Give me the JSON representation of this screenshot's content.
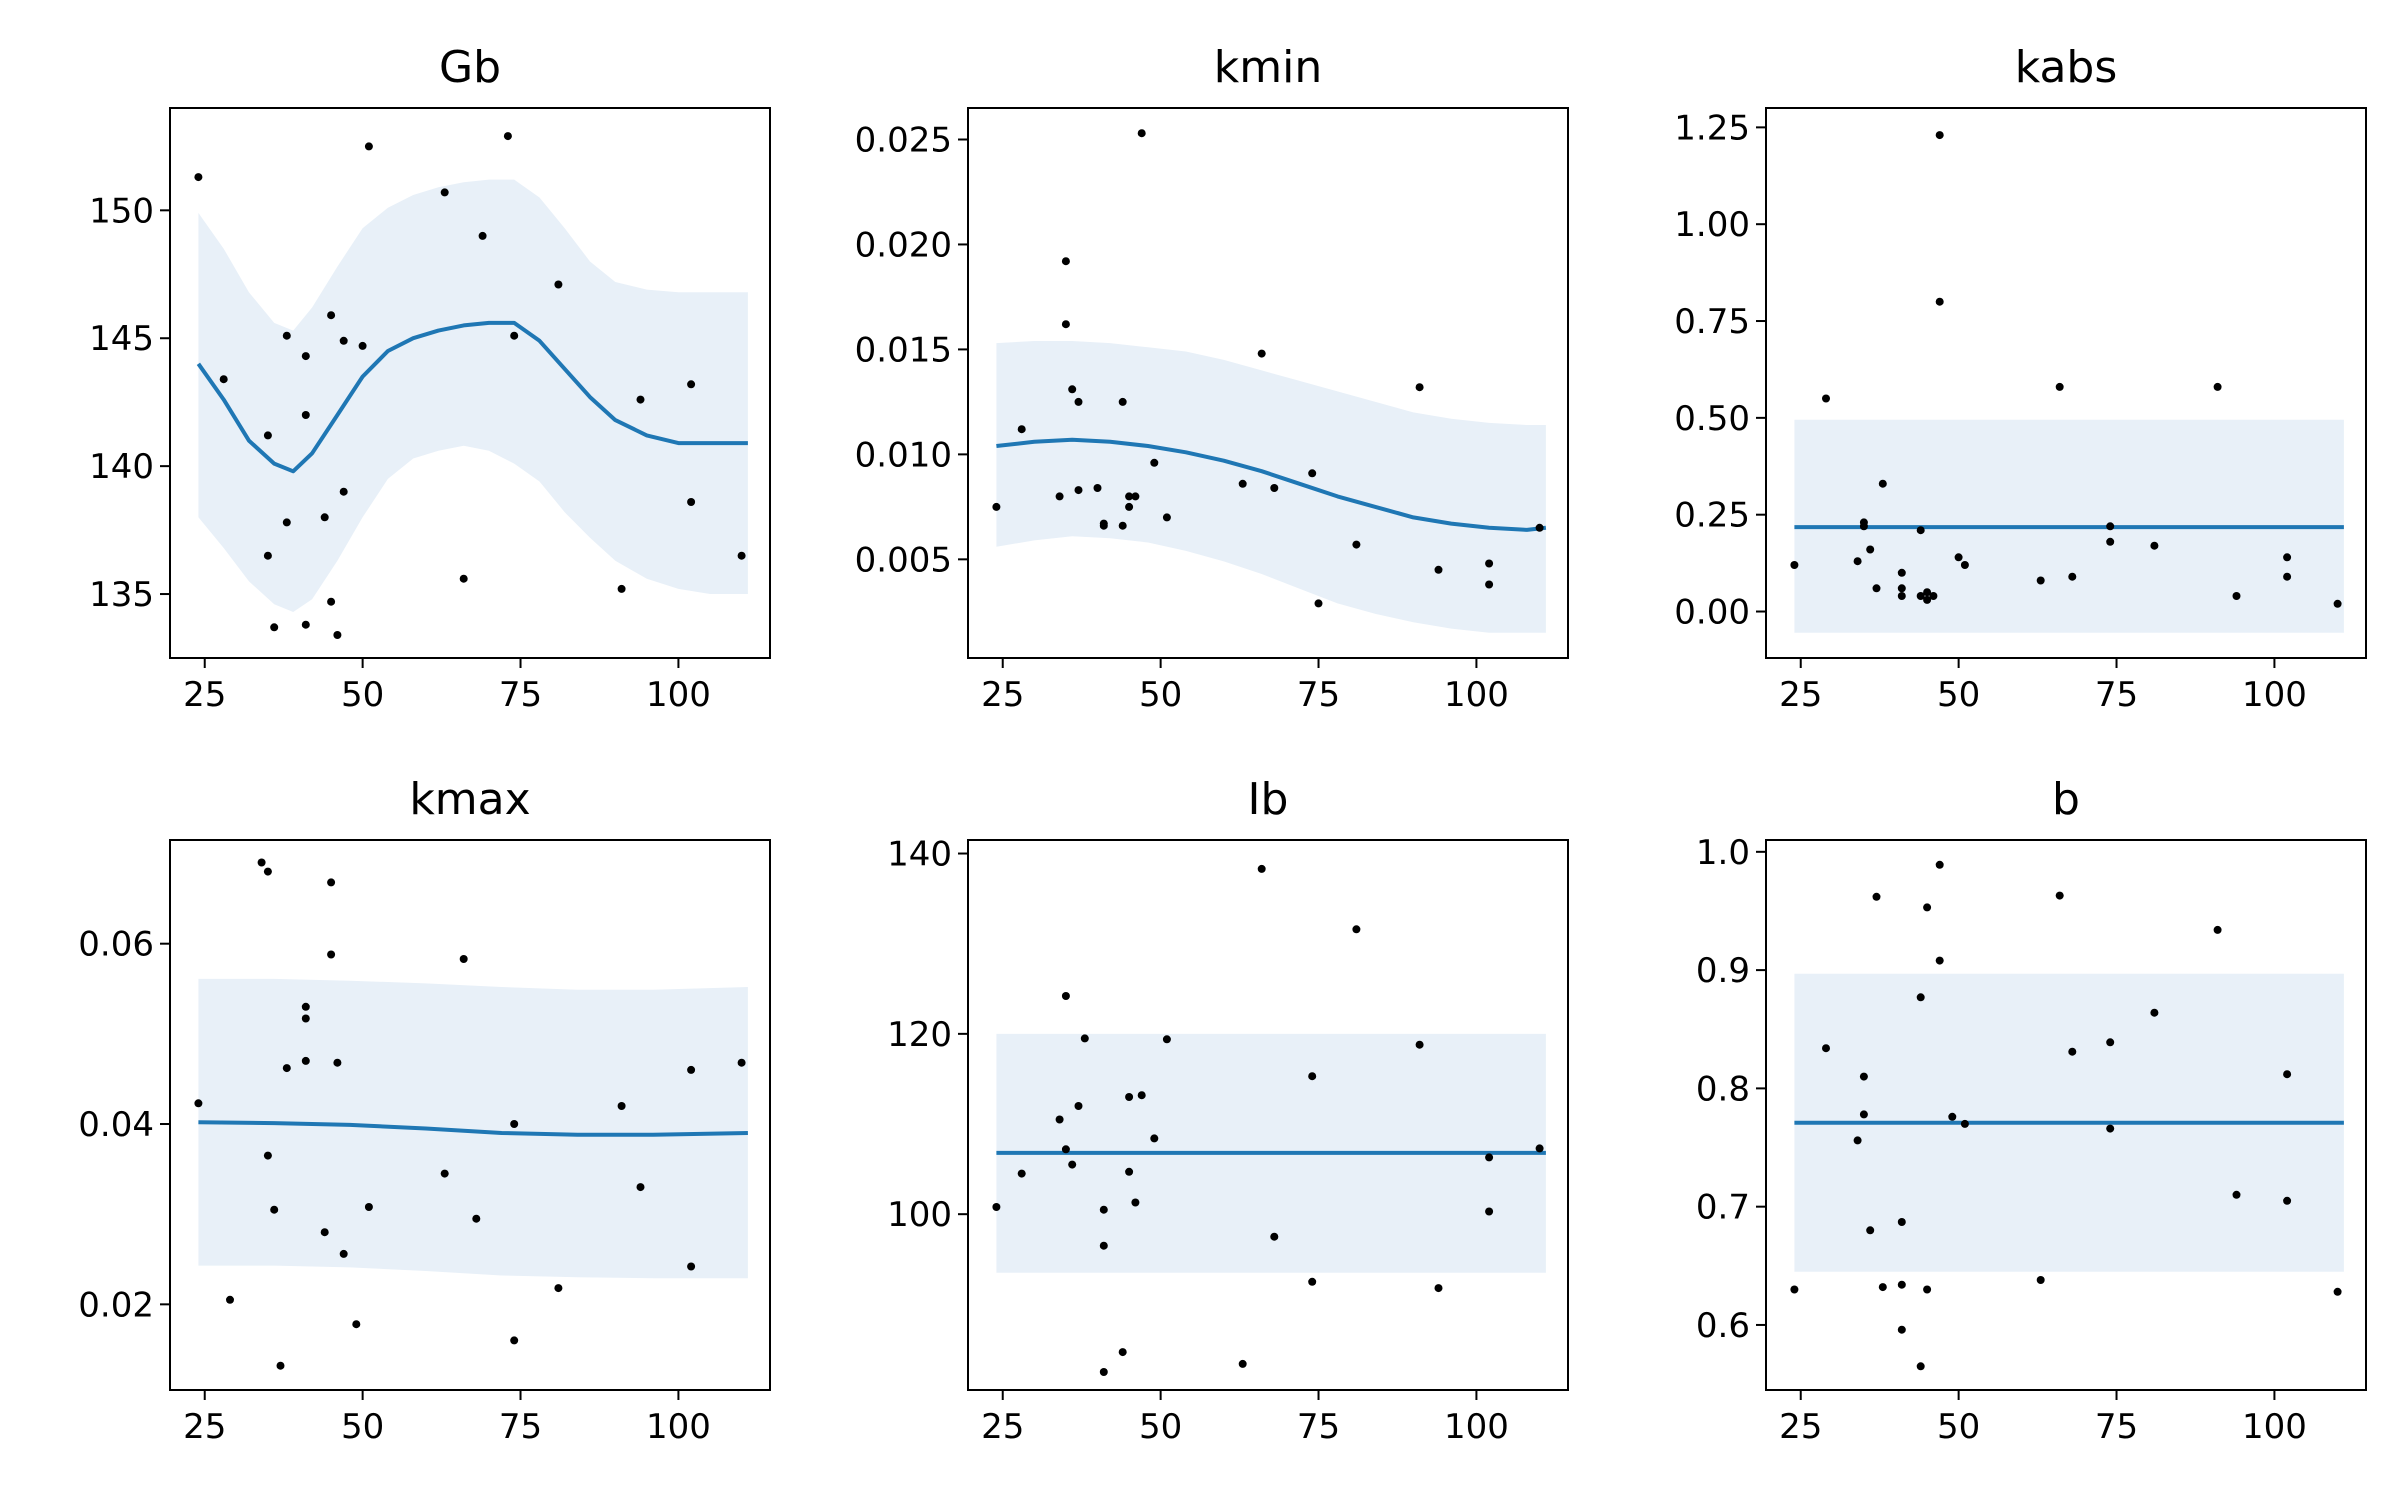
{
  "figure": {
    "background": "#ffffff"
  },
  "style": {
    "line_color": "#1f77b4",
    "band_color": "#e8f0f8",
    "point_color": "#000000"
  },
  "chart_data": [
    {
      "type": "line",
      "title": "Gb",
      "xlabel": "",
      "ylabel": "",
      "xlim": [
        19.5,
        114.5
      ],
      "ylim": [
        132.5,
        154
      ],
      "xticks": [
        25,
        50,
        75,
        100
      ],
      "xticklabels": [
        "25",
        "50",
        "75",
        "100"
      ],
      "yticks": [
        135,
        140,
        145,
        150
      ],
      "yticklabels": [
        "135",
        "140",
        "145",
        "150"
      ],
      "grid": false,
      "fit": {
        "x": [
          24,
          28,
          32,
          36,
          39,
          42,
          46,
          50,
          54,
          58,
          62,
          66,
          70,
          74,
          78,
          82,
          86,
          90,
          95,
          100,
          105,
          111
        ],
        "y": [
          144.0,
          142.6,
          141.0,
          140.1,
          139.8,
          140.5,
          142.0,
          143.5,
          144.5,
          145.0,
          145.3,
          145.5,
          145.6,
          145.6,
          144.9,
          143.8,
          142.7,
          141.8,
          141.2,
          140.9,
          140.9,
          140.9
        ]
      },
      "band": {
        "x": [
          24,
          28,
          32,
          36,
          39,
          42,
          46,
          50,
          54,
          58,
          62,
          66,
          70,
          74,
          78,
          82,
          86,
          90,
          95,
          100,
          105,
          111
        ],
        "lower": [
          138.0,
          136.8,
          135.5,
          134.6,
          134.3,
          134.8,
          136.3,
          138.0,
          139.5,
          140.3,
          140.6,
          140.8,
          140.6,
          140.1,
          139.4,
          138.2,
          137.2,
          136.3,
          135.6,
          135.2,
          135.0,
          135.0
        ],
        "upper": [
          149.9,
          148.5,
          146.8,
          145.6,
          145.3,
          146.2,
          147.8,
          149.3,
          150.1,
          150.6,
          150.9,
          151.1,
          151.2,
          151.2,
          150.5,
          149.3,
          148.0,
          147.2,
          146.9,
          146.8,
          146.8,
          146.8
        ]
      },
      "points": {
        "x": [
          24,
          28,
          35,
          35,
          36,
          38,
          38,
          41,
          41,
          41,
          44,
          45,
          45,
          46,
          47,
          47,
          50,
          51,
          63,
          66,
          69,
          73,
          74,
          81,
          91,
          94,
          102,
          102,
          110
        ],
        "y": [
          151.3,
          143.4,
          141.2,
          136.5,
          133.7,
          145.1,
          137.8,
          144.3,
          142.0,
          133.8,
          138.0,
          145.9,
          134.7,
          133.4,
          144.9,
          139.0,
          144.7,
          152.5,
          150.7,
          135.6,
          149.0,
          152.9,
          145.1,
          147.1,
          135.2,
          142.6,
          143.2,
          138.6,
          136.5
        ]
      }
    },
    {
      "type": "line",
      "title": "kmin",
      "xlabel": "",
      "ylabel": "",
      "xlim": [
        19.5,
        114.5
      ],
      "ylim": [
        0.0003,
        0.0265
      ],
      "xticks": [
        25,
        50,
        75,
        100
      ],
      "xticklabels": [
        "25",
        "50",
        "75",
        "100"
      ],
      "yticks": [
        0.005,
        0.01,
        0.015,
        0.02,
        0.025
      ],
      "yticklabels": [
        "0.005",
        "0.010",
        "0.015",
        "0.020",
        "0.025"
      ],
      "grid": false,
      "fit": {
        "x": [
          24,
          30,
          36,
          42,
          48,
          54,
          60,
          66,
          72,
          78,
          84,
          90,
          96,
          102,
          108,
          111
        ],
        "y": [
          0.0104,
          0.0106,
          0.0107,
          0.0106,
          0.0104,
          0.0101,
          0.0097,
          0.0092,
          0.0086,
          0.008,
          0.0075,
          0.007,
          0.0067,
          0.0065,
          0.0064,
          0.0065
        ]
      },
      "band": {
        "x": [
          24,
          30,
          36,
          42,
          48,
          54,
          60,
          66,
          72,
          78,
          84,
          90,
          96,
          102,
          108,
          111
        ],
        "lower": [
          0.0056,
          0.0059,
          0.0061,
          0.006,
          0.0058,
          0.0054,
          0.0049,
          0.0043,
          0.0036,
          0.0029,
          0.0024,
          0.002,
          0.0017,
          0.0015,
          0.0015,
          0.0015
        ],
        "upper": [
          0.0153,
          0.0154,
          0.0154,
          0.0153,
          0.0151,
          0.0149,
          0.0145,
          0.014,
          0.0135,
          0.013,
          0.0125,
          0.012,
          0.0117,
          0.0115,
          0.0114,
          0.0114
        ]
      },
      "points": {
        "x": [
          24,
          28,
          34,
          35,
          35,
          36,
          37,
          37,
          40,
          41,
          41,
          44,
          44,
          45,
          45,
          46,
          47,
          49,
          51,
          63,
          66,
          68,
          74,
          75,
          81,
          91,
          94,
          102,
          102,
          110
        ],
        "y": [
          0.0075,
          0.0112,
          0.008,
          0.0192,
          0.0162,
          0.0131,
          0.0083,
          0.0125,
          0.0084,
          0.0067,
          0.0066,
          0.0125,
          0.0066,
          0.0075,
          0.008,
          0.008,
          0.0253,
          0.0096,
          0.007,
          0.0086,
          0.0148,
          0.0084,
          0.0091,
          0.0029,
          0.0057,
          0.0132,
          0.0045,
          0.0048,
          0.0038,
          0.0065
        ]
      }
    },
    {
      "type": "line",
      "title": "kabs",
      "xlabel": "",
      "ylabel": "",
      "xlim": [
        19.5,
        114.5
      ],
      "ylim": [
        -0.12,
        1.3
      ],
      "xticks": [
        25,
        50,
        75,
        100
      ],
      "xticklabels": [
        "25",
        "50",
        "75",
        "100"
      ],
      "yticks": [
        0.0,
        0.25,
        0.5,
        0.75,
        1.0,
        1.25
      ],
      "yticklabels": [
        "0.00",
        "0.25",
        "0.50",
        "0.75",
        "1.00",
        "1.25"
      ],
      "grid": false,
      "fit": {
        "x": [
          24,
          111
        ],
        "y": [
          0.218,
          0.218
        ]
      },
      "band": {
        "x": [
          24,
          111
        ],
        "lower": [
          -0.055,
          -0.055
        ],
        "upper": [
          0.495,
          0.495
        ]
      },
      "points": {
        "x": [
          24,
          29,
          34,
          35,
          35,
          36,
          37,
          38,
          41,
          41,
          41,
          44,
          44,
          45,
          45,
          46,
          47,
          47,
          50,
          51,
          63,
          66,
          68,
          74,
          74,
          81,
          91,
          94,
          102,
          102,
          110
        ],
        "y": [
          0.12,
          0.55,
          0.13,
          0.23,
          0.22,
          0.16,
          0.06,
          0.33,
          0.04,
          0.06,
          0.1,
          0.21,
          0.04,
          0.05,
          0.03,
          0.04,
          1.23,
          0.8,
          0.14,
          0.12,
          0.08,
          0.58,
          0.09,
          0.18,
          0.22,
          0.17,
          0.58,
          0.04,
          0.09,
          0.14,
          0.02
        ]
      }
    },
    {
      "type": "line",
      "title": "kmax",
      "xlabel": "",
      "ylabel": "",
      "xlim": [
        19.5,
        114.5
      ],
      "ylim": [
        0.0105,
        0.0715
      ],
      "xticks": [
        25,
        50,
        75,
        100
      ],
      "xticklabels": [
        "25",
        "50",
        "75",
        "100"
      ],
      "yticks": [
        0.02,
        0.04,
        0.06
      ],
      "yticklabels": [
        "0.02",
        "0.04",
        "0.06"
      ],
      "grid": false,
      "fit": {
        "x": [
          24,
          36,
          48,
          60,
          72,
          84,
          96,
          111
        ],
        "y": [
          0.0402,
          0.0401,
          0.0399,
          0.0395,
          0.039,
          0.0388,
          0.0388,
          0.039
        ]
      },
      "band": {
        "x": [
          24,
          36,
          48,
          60,
          72,
          84,
          96,
          111
        ],
        "lower": [
          0.0243,
          0.0243,
          0.0241,
          0.0237,
          0.0232,
          0.023,
          0.0229,
          0.0229
        ],
        "upper": [
          0.0561,
          0.0561,
          0.0559,
          0.0556,
          0.0552,
          0.0549,
          0.0549,
          0.0552
        ]
      },
      "points": {
        "x": [
          24,
          29,
          34,
          35,
          35,
          36,
          37,
          38,
          41,
          41,
          41,
          44,
          45,
          45,
          46,
          47,
          49,
          51,
          63,
          66,
          68,
          74,
          74,
          81,
          91,
          94,
          102,
          102,
          110
        ],
        "y": [
          0.0423,
          0.0205,
          0.069,
          0.068,
          0.0365,
          0.0305,
          0.0132,
          0.0462,
          0.053,
          0.0517,
          0.047,
          0.028,
          0.0668,
          0.0588,
          0.0468,
          0.0256,
          0.0178,
          0.0308,
          0.0345,
          0.0583,
          0.0295,
          0.016,
          0.04,
          0.0218,
          0.042,
          0.033,
          0.046,
          0.0242,
          0.0468
        ]
      }
    },
    {
      "type": "line",
      "title": "Ib",
      "xlabel": "",
      "ylabel": "",
      "xlim": [
        19.5,
        114.5
      ],
      "ylim": [
        80.5,
        141.5
      ],
      "xticks": [
        25,
        50,
        75,
        100
      ],
      "xticklabels": [
        "25",
        "50",
        "75",
        "100"
      ],
      "yticks": [
        100,
        120,
        140
      ],
      "yticklabels": [
        "100",
        "120",
        "140"
      ],
      "grid": false,
      "fit": {
        "x": [
          24,
          111
        ],
        "y": [
          106.8,
          106.8
        ]
      },
      "band": {
        "x": [
          24,
          111
        ],
        "lower": [
          93.5,
          93.5
        ],
        "upper": [
          120.0,
          120.0
        ]
      },
      "points": {
        "x": [
          24,
          28,
          34,
          35,
          35,
          36,
          37,
          38,
          41,
          41,
          41,
          44,
          45,
          45,
          46,
          47,
          49,
          51,
          63,
          66,
          68,
          74,
          74,
          81,
          91,
          94,
          102,
          102,
          110
        ],
        "y": [
          100.8,
          104.5,
          110.5,
          124.2,
          107.2,
          105.5,
          112.0,
          119.5,
          100.5,
          96.5,
          82.5,
          84.7,
          113.0,
          104.7,
          101.3,
          113.2,
          108.4,
          119.4,
          83.4,
          138.3,
          97.5,
          92.5,
          115.3,
          131.6,
          118.8,
          91.8,
          106.3,
          100.3,
          107.3
        ]
      }
    },
    {
      "type": "line",
      "title": "b",
      "xlabel": "",
      "ylabel": "",
      "xlim": [
        19.5,
        114.5
      ],
      "ylim": [
        0.545,
        1.01
      ],
      "xticks": [
        25,
        50,
        75,
        100
      ],
      "xticklabels": [
        "25",
        "50",
        "75",
        "100"
      ],
      "yticks": [
        0.6,
        0.7,
        0.8,
        0.9,
        1.0
      ],
      "yticklabels": [
        "0.6",
        "0.7",
        "0.8",
        "0.9",
        "1.0"
      ],
      "grid": false,
      "fit": {
        "x": [
          24,
          111
        ],
        "y": [
          0.771,
          0.771
        ]
      },
      "band": {
        "x": [
          24,
          111
        ],
        "lower": [
          0.645,
          0.645
        ],
        "upper": [
          0.897,
          0.897
        ]
      },
      "points": {
        "x": [
          24,
          29,
          34,
          35,
          35,
          36,
          37,
          38,
          41,
          41,
          41,
          44,
          44,
          45,
          45,
          47,
          47,
          49,
          51,
          63,
          66,
          68,
          74,
          74,
          81,
          91,
          94,
          102,
          102,
          110
        ],
        "y": [
          0.63,
          0.834,
          0.756,
          0.81,
          0.778,
          0.68,
          0.962,
          0.632,
          0.687,
          0.634,
          0.596,
          0.877,
          0.565,
          0.953,
          0.63,
          0.989,
          0.908,
          0.776,
          0.77,
          0.638,
          0.963,
          0.831,
          0.839,
          0.766,
          0.864,
          0.934,
          0.71,
          0.705,
          0.812,
          0.628
        ]
      }
    }
  ]
}
